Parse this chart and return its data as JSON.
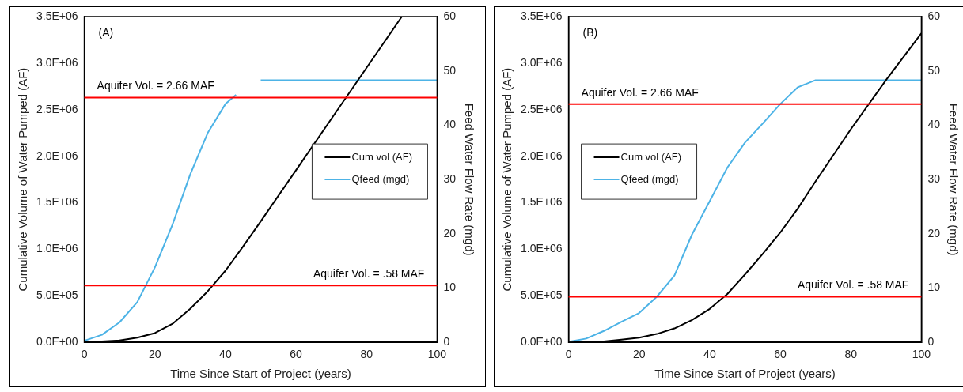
{
  "chart_data": [
    {
      "type": "line",
      "xlabel": "Time Since Start of Project (years)",
      "ylabel": "Cumulative Volume of Water Pumped (AF)",
      "y2label": "Feed Water Flow Rate (mgd)",
      "annotations": [
        "(A)",
        "Aquifer Vol. = 2.66 MAF",
        "Aquifer Vol. = .58 MAF"
      ],
      "xlim": [
        0,
        100
      ],
      "xticks": [
        0,
        20,
        40,
        60,
        80,
        100
      ],
      "ylim": [
        0,
        3500000
      ],
      "yticks": [
        {
          "value": 0,
          "label": "0.0E+00"
        },
        {
          "value": 500000,
          "label": "5.0E+05"
        },
        {
          "value": 1000000,
          "label": "1.0E+06"
        },
        {
          "value": 1500000,
          "label": "1.5E+06"
        },
        {
          "value": 2000000,
          "label": "2.0E+06"
        },
        {
          "value": 2500000,
          "label": "2.5E+06"
        },
        {
          "value": 3000000,
          "label": "3.0E+06"
        },
        {
          "value": 3500000,
          "label": "3.5E+06"
        }
      ],
      "y2lim": [
        0,
        60
      ],
      "y2ticks": [
        0,
        10,
        20,
        30,
        40,
        50,
        60
      ],
      "grid": false,
      "legend": "right",
      "marker": "none",
      "line_style": "solid",
      "series": [
        {
          "name": "Cum vol (AF)",
          "color": "#000000",
          "x": [
            0,
            5,
            10,
            15,
            20,
            25,
            30,
            35,
            40,
            45,
            50,
            60,
            70,
            80,
            90
          ],
          "values": [
            0,
            10000,
            20000,
            50000,
            100000,
            200000,
            360000,
            550000,
            770000,
            1030000,
            1300000,
            1850000,
            2400000,
            2950000,
            3500000
          ]
        },
        {
          "name": "Qfeed (mgd)",
          "color": "#4db3e6",
          "axis": "y2",
          "x": [
            0,
            5,
            10,
            15,
            20,
            25,
            30,
            35,
            40,
            43,
            46,
            50,
            60,
            70,
            80,
            90,
            100
          ],
          "values": [
            0.3,
            1.4,
            3.7,
            7.4,
            13.8,
            21.7,
            30.9,
            38.6,
            43.9,
            45.6,
            null,
            48.3,
            48.3,
            48.3,
            48.3,
            48.3,
            48.3
          ]
        }
      ],
      "ref_lines": [
        {
          "axis": "y",
          "value": 2630000,
          "color": "#ff0000"
        },
        {
          "axis": "y",
          "value": 610000,
          "color": "#ff0000"
        }
      ]
    },
    {
      "type": "line",
      "xlabel": "Time Since Start of Project (years)",
      "ylabel": "Cumulative Volume of Water Pumped (AF)",
      "y2label": "Feed Water Flow Rate (mgd)",
      "annotations": [
        "(B)",
        "Aquifer Vol. = 2.66 MAF",
        "Aquifer Vol. = .58 MAF"
      ],
      "xlim": [
        0,
        100
      ],
      "xticks": [
        0,
        20,
        40,
        60,
        80,
        100
      ],
      "ylim": [
        0,
        3500000
      ],
      "yticks": [
        {
          "value": 0,
          "label": "0.0E+00"
        },
        {
          "value": 500000,
          "label": "5.0E+05"
        },
        {
          "value": 1000000,
          "label": "1.0E+06"
        },
        {
          "value": 1500000,
          "label": "1.5E+06"
        },
        {
          "value": 2000000,
          "label": "2.0E+06"
        },
        {
          "value": 2500000,
          "label": "2.5E+06"
        },
        {
          "value": 3000000,
          "label": "3.0E+06"
        },
        {
          "value": 3500000,
          "label": "3.5E+06"
        }
      ],
      "y2lim": [
        0,
        60
      ],
      "y2ticks": [
        0,
        10,
        20,
        30,
        40,
        50,
        60
      ],
      "grid": false,
      "legend": "left",
      "marker": "none",
      "line_style": "solid",
      "series": [
        {
          "name": "Cum vol (AF)",
          "color": "#000000",
          "x": [
            0,
            5,
            10,
            15,
            20,
            25,
            30,
            35,
            40,
            45,
            50,
            55,
            60,
            65,
            70,
            80,
            90,
            100
          ],
          "values": [
            0,
            0,
            10000,
            30000,
            50000,
            90000,
            150000,
            240000,
            360000,
            520000,
            730000,
            950000,
            1180000,
            1440000,
            1730000,
            2290000,
            2820000,
            3320000
          ]
        },
        {
          "name": "Qfeed (mgd)",
          "color": "#4db3e6",
          "axis": "y2",
          "x": [
            0,
            5,
            10,
            15,
            20,
            25,
            30,
            35,
            40,
            45,
            50,
            55,
            60,
            65,
            70,
            80,
            90,
            100
          ],
          "values": [
            0.1,
            0.7,
            2.1,
            3.8,
            5.4,
            8.4,
            12.3,
            19.9,
            26,
            32.2,
            36.8,
            40.3,
            43.9,
            47,
            48.3,
            48.3,
            48.3,
            48.3
          ]
        }
      ],
      "ref_lines": [
        {
          "axis": "y",
          "value": 2560000,
          "color": "#ff0000"
        },
        {
          "axis": "y",
          "value": 490000,
          "color": "#ff0000"
        }
      ]
    }
  ]
}
